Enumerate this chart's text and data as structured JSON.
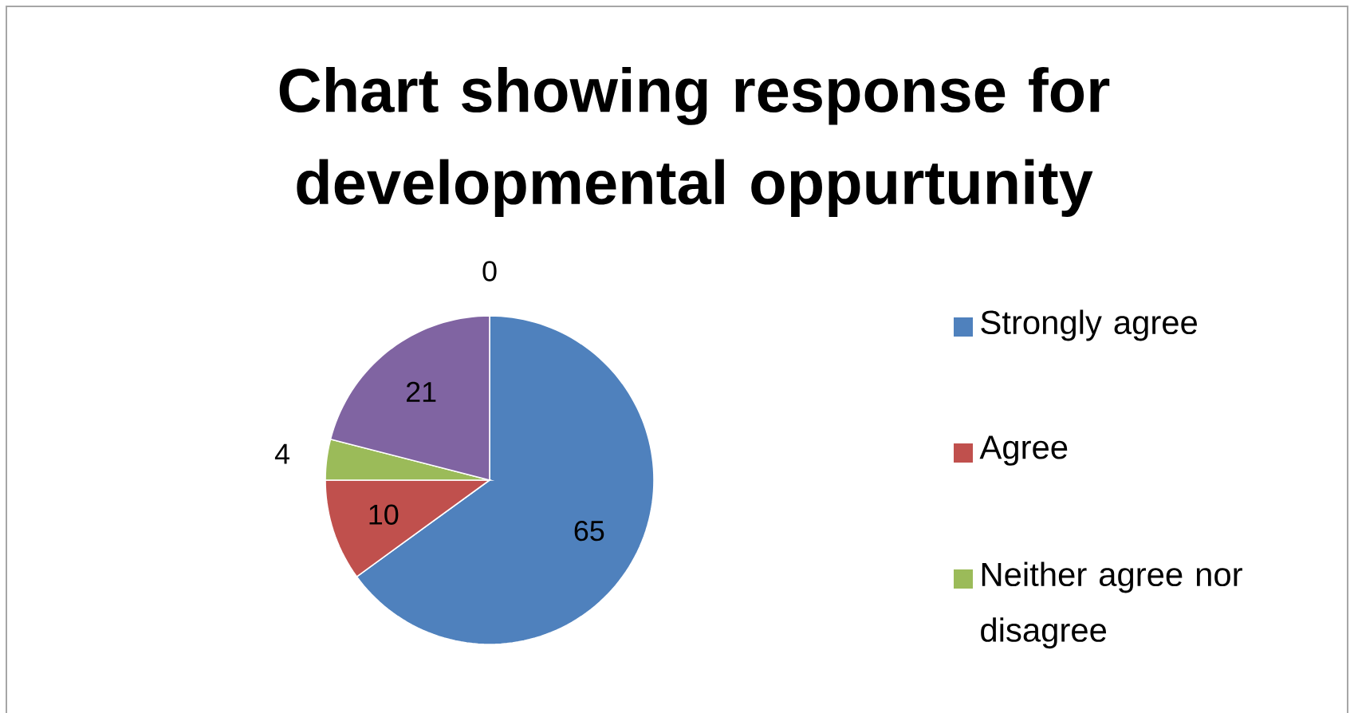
{
  "chart_data": {
    "type": "pie",
    "title": "Chart showing response for developmental oppurtunity",
    "categories": [
      "Strongly agree",
      "Agree",
      "Neither agree nor disagree",
      null,
      null
    ],
    "values": [
      65,
      10,
      4,
      21,
      0
    ],
    "colors": [
      "#4f81bd",
      "#c0504d",
      "#9bbb59",
      "#8064a2",
      "#f79646"
    ],
    "value_labels": [
      "65",
      "10",
      "4",
      "21",
      "0"
    ],
    "legend": "right"
  }
}
